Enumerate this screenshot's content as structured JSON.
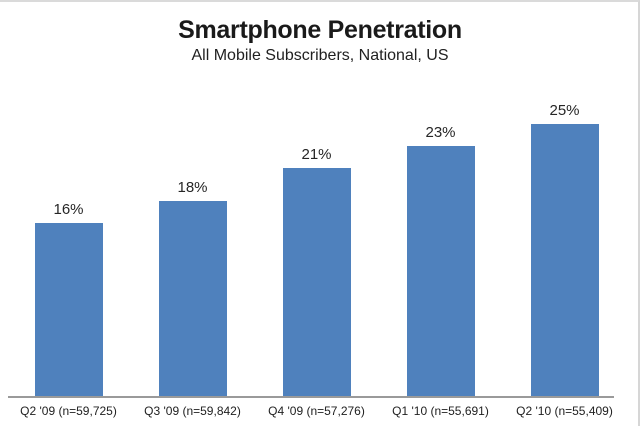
{
  "chart_data": {
    "type": "bar",
    "title": "Smartphone Penetration",
    "subtitle": "All Mobile Subscribers, National, US",
    "categories": [
      "Q2 '09 (n=59,725)",
      "Q3 '09 (n=59,842)",
      "Q4 '09 (n=57,276)",
      "Q1 '10 (n=55,691)",
      "Q2 '10 (n=55,409)"
    ],
    "values": [
      16,
      18,
      21,
      23,
      25
    ],
    "value_labels": [
      "16%",
      "18%",
      "21%",
      "23%",
      "25%"
    ],
    "xlabel": "",
    "ylabel": "",
    "ylim": [
      0,
      30
    ],
    "grid": false,
    "legend": false,
    "bar_color": "#4F81BD",
    "axis_line_color": "#9A9A9A",
    "text_color": "#262626"
  }
}
